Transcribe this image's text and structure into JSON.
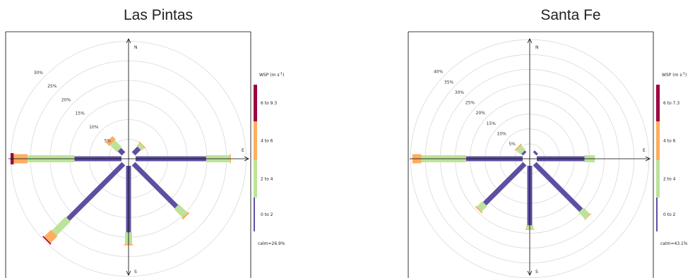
{
  "chart_data": [
    {
      "type": "windrose",
      "title": "Las Pintas",
      "directions": [
        "N",
        "E",
        "S"
      ],
      "rings_pct": [
        5,
        10,
        15,
        20,
        25,
        30
      ],
      "ring_labels": [
        "5%",
        "10%",
        "15%",
        "20%",
        "25%",
        "30%"
      ],
      "legend_title": "WSP (m s",
      "legend_title_sup": "-1",
      "legend_title_end": ")",
      "bins": [
        {
          "label": "0 to 2",
          "color": "#5e4fa2"
        },
        {
          "label": "2 to 4",
          "color": "#bde39a"
        },
        {
          "label": "4 to 6",
          "color": "#fdae61"
        },
        {
          "label": "6 to 9.3",
          "color": "#9e0142"
        }
      ],
      "calm": "calm=26.9%",
      "spokes": [
        {
          "dir": 0,
          "values": [
            0.0,
            0.0,
            0.0,
            0.0
          ]
        },
        {
          "dir": 45,
          "values": [
            2.0,
            1.0,
            0.3,
            0.0
          ]
        },
        {
          "dir": 90,
          "values": [
            18.0,
            6.0,
            0.3,
            0.0
          ]
        },
        {
          "dir": 135,
          "values": [
            15.5,
            3.0,
            0.5,
            0.0
          ]
        },
        {
          "dir": 180,
          "values": [
            17.0,
            3.0,
            0.3,
            0.0
          ]
        },
        {
          "dir": 225,
          "values": [
            20.0,
            5.0,
            2.5,
            0.3
          ]
        },
        {
          "dir": 270,
          "values": [
            12.0,
            12.0,
            3.5,
            0.8
          ]
        },
        {
          "dir": 315,
          "values": [
            1.5,
            2.5,
            1.2,
            0.0
          ]
        }
      ]
    },
    {
      "type": "windrose",
      "title": "Santa Fe",
      "directions": [
        "N",
        "E",
        "S"
      ],
      "rings_pct": [
        5,
        10,
        15,
        20,
        25,
        30,
        35,
        40
      ],
      "ring_labels": [
        "5%",
        "10%",
        "15%",
        "20%",
        "25%",
        "30%",
        "35%",
        "40%"
      ],
      "legend_title": "WSP (m s",
      "legend_title_sup": "-1",
      "legend_title_end": ")",
      "bins": [
        {
          "label": "0 to 2",
          "color": "#5e4fa2"
        },
        {
          "label": "2 to 4",
          "color": "#bde39a"
        },
        {
          "label": "4 to 6",
          "color": "#fdae61"
        },
        {
          "label": "6 to 7.3",
          "color": "#9e0142"
        }
      ],
      "calm": "calm=43.1%",
      "spokes": [
        {
          "dir": 0,
          "values": [
            0.0,
            0.0,
            0.0,
            0.0
          ]
        },
        {
          "dir": 45,
          "values": [
            0.8,
            0.0,
            0.0,
            0.0
          ]
        },
        {
          "dir": 90,
          "values": [
            16.0,
            3.5,
            0.0,
            0.0
          ]
        },
        {
          "dir": 135,
          "values": [
            22.0,
            3.0,
            0.3,
            0.0
          ]
        },
        {
          "dir": 180,
          "values": [
            20.0,
            1.2,
            0.3,
            0.0
          ]
        },
        {
          "dir": 225,
          "values": [
            19.0,
            2.5,
            0.5,
            0.0
          ]
        },
        {
          "dir": 270,
          "values": [
            19.0,
            15.0,
            3.0,
            0.0
          ]
        },
        {
          "dir": 315,
          "values": [
            0.8,
            2.0,
            0.5,
            0.0
          ]
        }
      ]
    }
  ]
}
